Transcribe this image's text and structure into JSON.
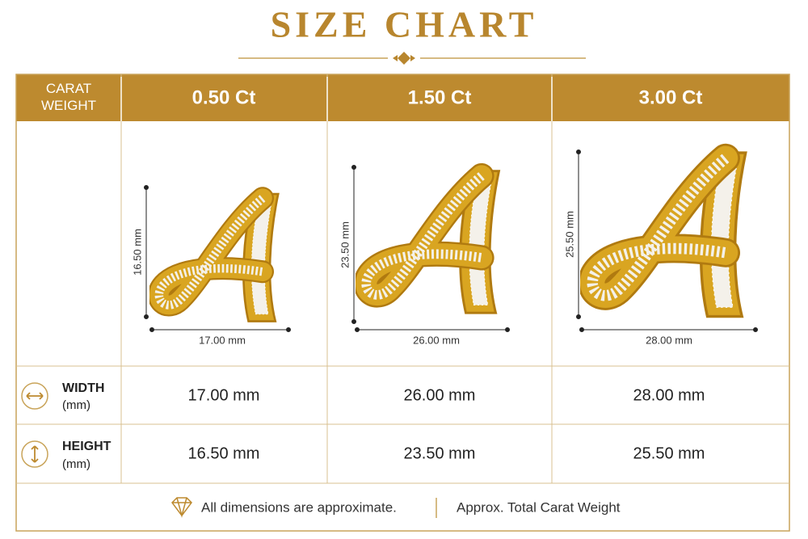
{
  "header": {
    "title": "SIZE CHART"
  },
  "table": {
    "corner": "CARAT WEIGHT",
    "columns": [
      "0.50 Ct",
      "1.50 Ct",
      "3.00 Ct"
    ],
    "images": [
      {
        "height_label": "16.50 mm",
        "width_label": "17.00 mm"
      },
      {
        "height_label": "23.50 mm",
        "width_label": "26.00 mm"
      },
      {
        "height_label": "25.50 mm",
        "width_label": "28.00 mm"
      }
    ],
    "rows": [
      {
        "label": "WIDTH",
        "unit": "(mm)",
        "cells": [
          "17.00 mm",
          "26.00 mm",
          "28.00 mm"
        ]
      },
      {
        "label": "HEIGHT",
        "unit": "(mm)",
        "cells": [
          "16.50 mm",
          "23.50 mm",
          "25.50 mm"
        ]
      }
    ]
  },
  "footer": {
    "note": "All dimensions are approximate.",
    "legend": "Approx. Total Carat Weight"
  }
}
